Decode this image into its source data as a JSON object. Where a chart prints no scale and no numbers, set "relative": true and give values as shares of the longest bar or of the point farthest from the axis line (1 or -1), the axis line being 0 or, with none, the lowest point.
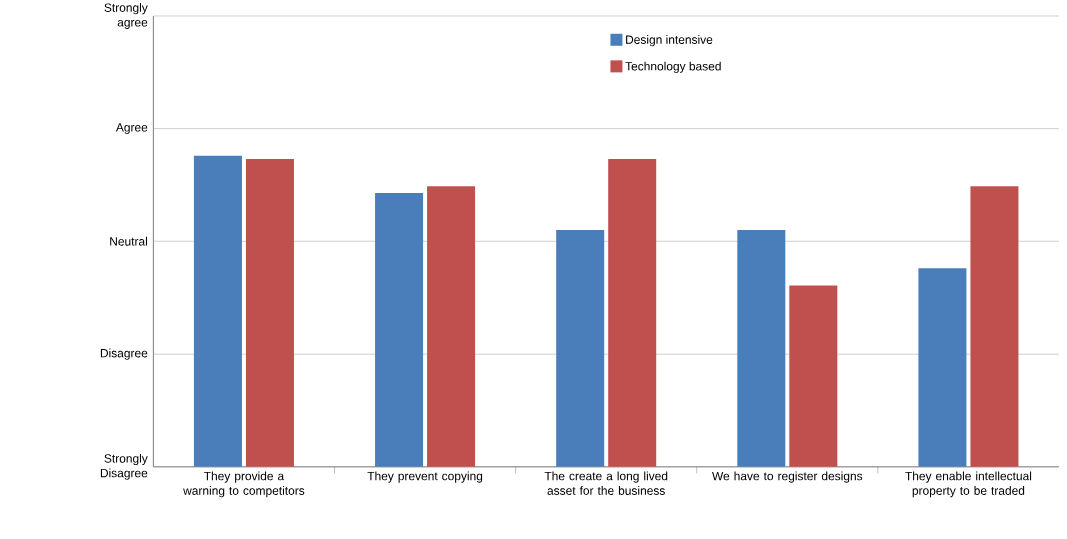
{
  "chart_data": {
    "type": "bar",
    "relative": true,
    "categories": [
      "They provide a warning to competitors",
      "They prevent copying",
      "The create a long lived asset for the business",
      "We have to register designs",
      "They enable intellectual property to be traded"
    ],
    "series": [
      {
        "name": "Design intensive",
        "color": "#4a7ebb",
        "values": [
          1,
          0.88,
          0.761,
          0.761,
          0.638
        ]
      },
      {
        "name": "Technology based",
        "color": "#c0504d",
        "values": [
          0.989,
          0.902,
          0.989,
          0.583,
          0.902
        ]
      }
    ],
    "ref_lines": [
      {
        "axis": "y",
        "value": 0,
        "label": "Strongly Disagree"
      },
      {
        "axis": "y",
        "value": 0.362,
        "label": "Disagree"
      },
      {
        "axis": "y",
        "value": 0.725,
        "label": "Neutral"
      },
      {
        "axis": "y",
        "value": 1.087,
        "label": "Agree"
      },
      {
        "axis": "y",
        "value": 1.449,
        "label": "Strongly agree"
      }
    ],
    "legend": "top"
  }
}
